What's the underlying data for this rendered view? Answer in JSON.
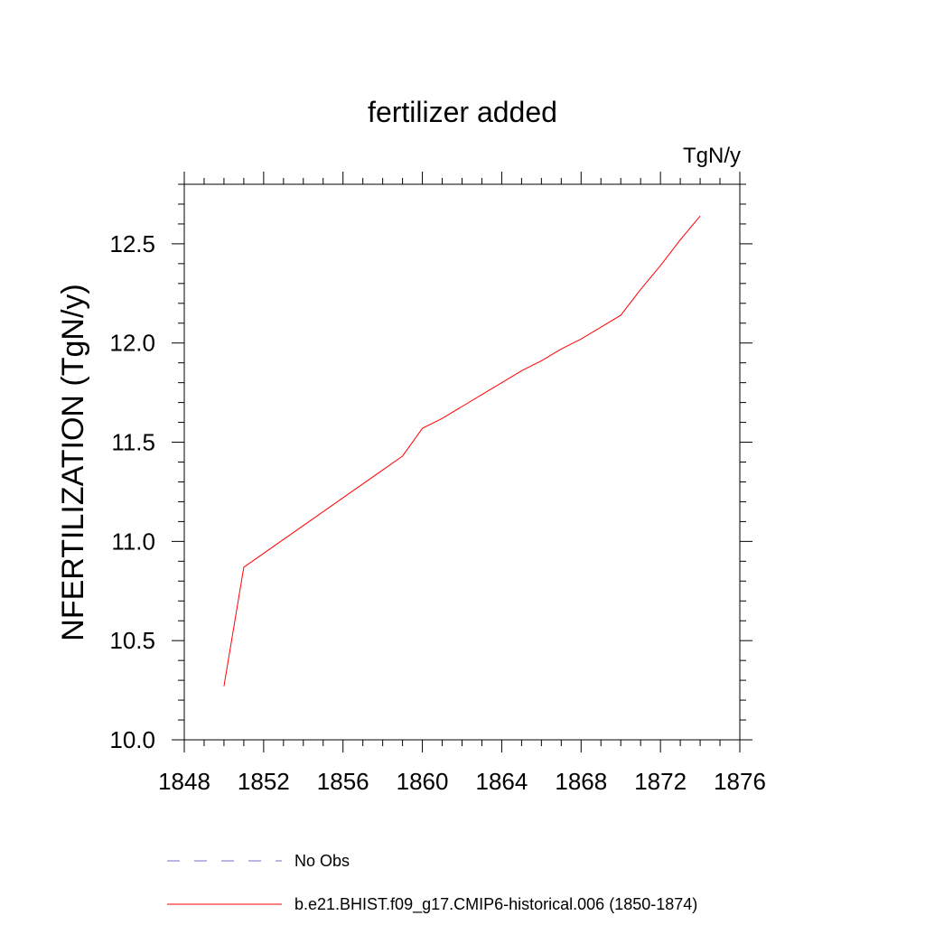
{
  "chart_data": {
    "type": "line",
    "title": "fertilizer added",
    "units_label": "TgN/y",
    "xlabel": "",
    "ylabel": "NFERTILIZATION  (TgN/y)",
    "xlim": [
      1848,
      1876
    ],
    "ylim": [
      10.0,
      12.8
    ],
    "x_ticks": [
      1848,
      1852,
      1856,
      1860,
      1864,
      1868,
      1872,
      1876
    ],
    "x_tick_labels": [
      "1848",
      "1852",
      "1856",
      "1860",
      "1864",
      "1868",
      "1872",
      "1876"
    ],
    "y_ticks": [
      10.0,
      10.5,
      11.0,
      11.5,
      12.0,
      12.5
    ],
    "y_tick_labels": [
      "10.0",
      "10.5",
      "11.0",
      "11.5",
      "12.0",
      "12.5"
    ],
    "grid": false,
    "legend_position": "bottom",
    "series": [
      {
        "name": "b.e21.BHIST.f09_g17.CMIP6-historical.006 (1850-1874)",
        "color": "#ff0000",
        "style": "solid",
        "x": [
          1850,
          1851,
          1852,
          1853,
          1854,
          1855,
          1856,
          1857,
          1858,
          1859,
          1860,
          1861,
          1862,
          1863,
          1864,
          1865,
          1866,
          1867,
          1868,
          1869,
          1870,
          1871,
          1872,
          1873,
          1874
        ],
        "y": [
          10.27,
          10.87,
          10.94,
          11.01,
          11.08,
          11.15,
          11.22,
          11.29,
          11.36,
          11.43,
          11.57,
          11.62,
          11.68,
          11.74,
          11.8,
          11.86,
          11.91,
          11.97,
          12.02,
          12.08,
          12.14,
          12.27,
          12.39,
          12.52,
          12.64
        ]
      }
    ],
    "legend": [
      {
        "label": "No Obs",
        "color": "#7b68c8",
        "style": "dashed"
      },
      {
        "label": "b.e21.BHIST.f09_g17.CMIP6-historical.006 (1850-1874)",
        "color": "#ff0000",
        "style": "solid"
      }
    ]
  }
}
